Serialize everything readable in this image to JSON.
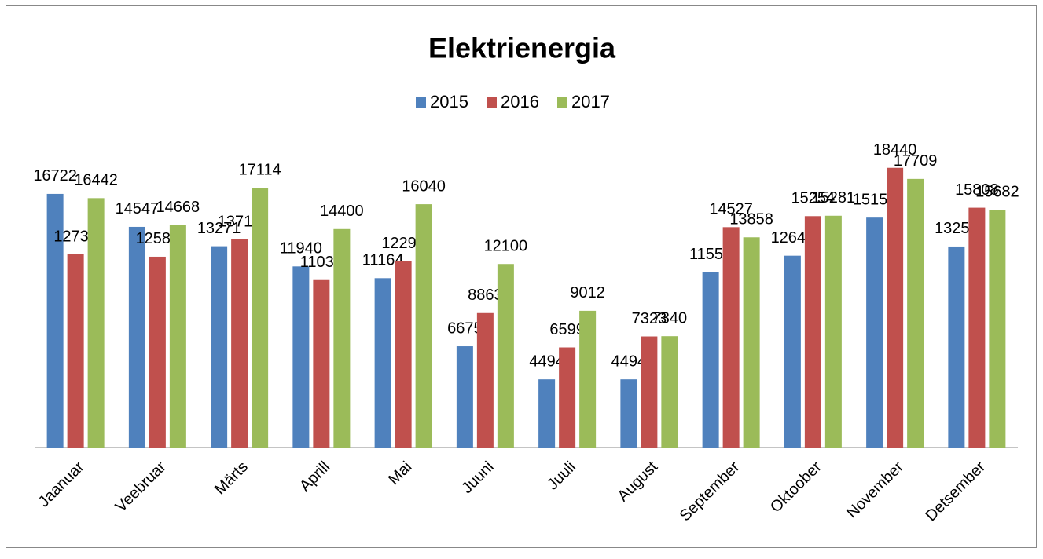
{
  "chart_data": {
    "type": "bar",
    "title": "Elektrienergia",
    "categories": [
      "Jaanuar",
      "Veebruar",
      "Märts",
      "Aprill",
      "Mai",
      "Juuni",
      "Juuli",
      "August",
      "September",
      "Oktoober",
      "November",
      "Detsember"
    ],
    "series": [
      {
        "name": "2015",
        "color": "#4f81bd",
        "values": [
          16722,
          14547,
          13271,
          11940,
          11164,
          6675,
          4494,
          4494,
          11555,
          12646,
          15157,
          13253
        ]
      },
      {
        "name": "2016",
        "color": "#c0504d",
        "values": [
          12733,
          12580,
          13716,
          11038,
          12293,
          8863,
          6599,
          7323,
          14527,
          15254,
          18440,
          15808
        ]
      },
      {
        "name": "2017",
        "color": "#9bbb59",
        "values": [
          16442,
          14668,
          17114,
          14400,
          16040,
          12100,
          9012,
          7340,
          13858,
          15281,
          17709,
          15682
        ]
      }
    ],
    "ylim": [
      0,
      20000
    ],
    "legend": "top"
  }
}
